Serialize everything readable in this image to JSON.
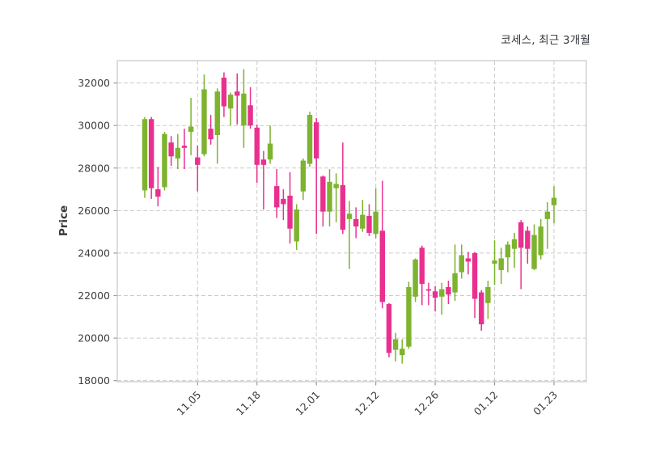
{
  "header": {
    "title": "코세스, 최근 3개월"
  },
  "chart_data": {
    "type": "candlestick",
    "title": "코세스, 최근 3개월",
    "title_meaning": "stock name Koses, recent 3 months",
    "ylabel": "Price",
    "ylim": [
      17950,
      33050
    ],
    "y_ticks": [
      18000,
      20000,
      22000,
      24000,
      26000,
      28000,
      30000,
      32000
    ],
    "x_tick_labels": [
      "11.05",
      "11.18",
      "12.01",
      "12.12",
      "12.26",
      "01.12",
      "01.23"
    ],
    "x_tick_indices": [
      8,
      17,
      26,
      35,
      44,
      53,
      62
    ],
    "grid": "dashed-both-axes",
    "legend": "none",
    "up_color": "#7DB32E",
    "down_color": "#E9308F",
    "grid_color": "#cccccc",
    "spine_color": "#c9c9c9",
    "ohlc_order": [
      "open",
      "high",
      "low",
      "close"
    ],
    "candles": [
      [
        26950,
        30400,
        26600,
        30300
      ],
      [
        30300,
        30400,
        26550,
        27050
      ],
      [
        27000,
        28050,
        26200,
        26650
      ],
      [
        27100,
        29700,
        26950,
        29600
      ],
      [
        29200,
        29500,
        28100,
        28550
      ],
      [
        28450,
        29600,
        27950,
        28950
      ],
      [
        29050,
        29850,
        27950,
        28950
      ],
      [
        29700,
        31300,
        28600,
        29950
      ],
      [
        28500,
        29050,
        26900,
        28150
      ],
      [
        28650,
        32400,
        28550,
        31700
      ],
      [
        29850,
        30500,
        29100,
        29350
      ],
      [
        29550,
        31750,
        28200,
        31600
      ],
      [
        32250,
        32500,
        30400,
        30900
      ],
      [
        30800,
        31550,
        30000,
        31450
      ],
      [
        31600,
        32450,
        30050,
        31400
      ],
      [
        30000,
        32650,
        28950,
        31500
      ],
      [
        30950,
        31800,
        29850,
        30000
      ],
      [
        29900,
        30050,
        27300,
        28150
      ],
      [
        28400,
        28800,
        26050,
        28150
      ],
      [
        28400,
        30000,
        28200,
        29150
      ],
      [
        27150,
        27950,
        25650,
        26150
      ],
      [
        26550,
        27000,
        25550,
        26300
      ],
      [
        26700,
        27800,
        24450,
        25150
      ],
      [
        24550,
        26300,
        24150,
        26050
      ],
      [
        26900,
        28450,
        26500,
        28350
      ],
      [
        28200,
        30650,
        28050,
        30500
      ],
      [
        30150,
        30350,
        24900,
        28450
      ],
      [
        27600,
        27650,
        25250,
        25950
      ],
      [
        25950,
        27950,
        25250,
        27350
      ],
      [
        27050,
        27750,
        25450,
        27250
      ],
      [
        27200,
        29200,
        24900,
        25100
      ],
      [
        25600,
        26450,
        23250,
        25850
      ],
      [
        25600,
        26150,
        24700,
        25250
      ],
      [
        25150,
        26500,
        25000,
        25800
      ],
      [
        25750,
        26300,
        24800,
        24950
      ],
      [
        24900,
        27050,
        24700,
        25950
      ],
      [
        25050,
        27400,
        21400,
        21700
      ],
      [
        21600,
        21650,
        19100,
        19300
      ],
      [
        19450,
        20250,
        18900,
        19950
      ],
      [
        19200,
        19950,
        18800,
        19500
      ],
      [
        19600,
        22650,
        19500,
        22400
      ],
      [
        21950,
        23750,
        21700,
        23700
      ],
      [
        24250,
        24350,
        21550,
        22550
      ],
      [
        22300,
        22600,
        21550,
        22250
      ],
      [
        22200,
        22450,
        21250,
        21900
      ],
      [
        21950,
        22600,
        21100,
        22300
      ],
      [
        22400,
        22700,
        21600,
        22050
      ],
      [
        22150,
        24400,
        21750,
        23050
      ],
      [
        23100,
        24400,
        22800,
        23900
      ],
      [
        23750,
        24050,
        23000,
        23600
      ],
      [
        24000,
        24050,
        20950,
        21850
      ],
      [
        22150,
        22250,
        20350,
        20650
      ],
      [
        21650,
        22700,
        20900,
        22400
      ],
      [
        23500,
        24600,
        22500,
        23650
      ],
      [
        23200,
        24250,
        22550,
        23750
      ],
      [
        23800,
        24550,
        23100,
        24400
      ],
      [
        24200,
        24950,
        23300,
        24650
      ],
      [
        25450,
        25550,
        22300,
        24250
      ],
      [
        25050,
        25250,
        23500,
        24200
      ],
      [
        23250,
        25350,
        23200,
        24850
      ],
      [
        23900,
        25600,
        23700,
        25250
      ],
      [
        25600,
        26400,
        24200,
        25950
      ],
      [
        26250,
        27150,
        25400,
        26600
      ]
    ]
  }
}
